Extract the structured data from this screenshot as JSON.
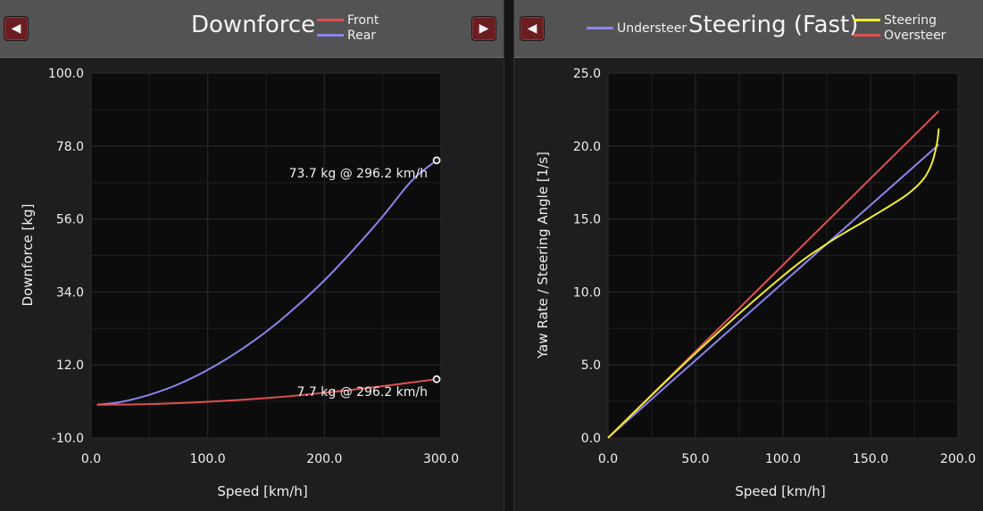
{
  "left_panel": {
    "title": "Downforce",
    "prev_icon": "left-triangle-icon",
    "next_icon": "right-triangle-icon",
    "prev_glyph": "◀",
    "next_glyph": "▶",
    "legend": [
      {
        "name": "Front",
        "color": "#e05050"
      },
      {
        "name": "Rear",
        "color": "#8a85ee"
      }
    ]
  },
  "right_panel": {
    "title": "Steering (Fast)",
    "prev_icon": "left-triangle-icon",
    "prev_glyph": "◀",
    "legend_left": [
      {
        "name": "Understeer",
        "color": "#8a85ee"
      }
    ],
    "legend_right": [
      {
        "name": "Steering",
        "color": "#f2ee2a"
      },
      {
        "name": "Oversteer",
        "color": "#e05050"
      }
    ]
  },
  "chart_data": [
    {
      "type": "line",
      "title": "Downforce",
      "xlabel": "Speed [km/h]",
      "ylabel": "Downforce [kg]",
      "xlim": [
        0,
        300
      ],
      "ylim": [
        -10,
        100
      ],
      "xticks": [
        "0.0",
        "100.0",
        "200.0",
        "300.0"
      ],
      "yticks": [
        "-10.0",
        "12.0",
        "34.0",
        "56.0",
        "78.0",
        "100.0"
      ],
      "grid": true,
      "legend": "top",
      "series": [
        {
          "name": "Rear",
          "color": "#8a85ee",
          "x": [
            5,
            25,
            50,
            75,
            100,
            125,
            150,
            175,
            200,
            225,
            250,
            275,
            296.2
          ],
          "y": [
            0,
            0.8,
            3.0,
            6.2,
            10.5,
            15.8,
            22.0,
            29.3,
            37.5,
            46.8,
            56.8,
            67.6,
            73.7
          ]
        },
        {
          "name": "Front",
          "color": "#e05050",
          "x": [
            5,
            50,
            100,
            150,
            200,
            250,
            296.2
          ],
          "y": [
            0,
            0.2,
            0.9,
            2.0,
            3.6,
            5.6,
            7.7
          ]
        }
      ],
      "annotations": [
        {
          "text": "73.7 kg @ 296.2 km/h",
          "x": 296.2,
          "y": 73.7
        },
        {
          "text": "7.7 kg @ 296.2 km/h",
          "x": 296.2,
          "y": 7.7
        }
      ]
    },
    {
      "type": "line",
      "title": "Steering (Fast)",
      "xlabel": "Speed [km/h]",
      "ylabel": "Yaw Rate / Steering Angle [1/s]",
      "xlim": [
        0,
        200
      ],
      "ylim": [
        0,
        25
      ],
      "xticks": [
        "0.0",
        "50.0",
        "100.0",
        "150.0",
        "200.0"
      ],
      "yticks": [
        "0.0",
        "5.0",
        "10.0",
        "15.0",
        "20.0",
        "25.0"
      ],
      "grid": true,
      "legend": "top",
      "series": [
        {
          "name": "Understeer",
          "color": "#8a85ee",
          "x": [
            0,
            189
          ],
          "y": [
            0,
            20.1
          ]
        },
        {
          "name": "Oversteer",
          "color": "#e05050",
          "x": [
            0,
            189
          ],
          "y": [
            0,
            22.4
          ]
        },
        {
          "name": "Steering",
          "color": "#f2ee2a",
          "x": [
            0,
            50,
            100,
            125,
            150,
            170,
            180,
            185,
            188,
            189
          ],
          "y": [
            0,
            5.8,
            11.1,
            13.3,
            15.1,
            16.6,
            17.7,
            18.8,
            20.2,
            21.2
          ]
        }
      ]
    }
  ]
}
